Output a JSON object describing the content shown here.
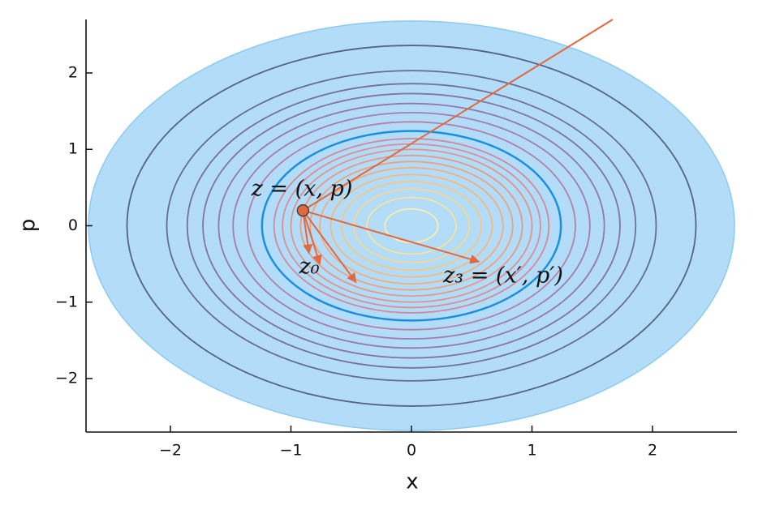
{
  "chart_data": {
    "type": "contour",
    "x_label": "x",
    "y_label": "p",
    "xlim": [
      -2.7,
      2.7
    ],
    "ylim": [
      -2.7,
      2.7
    ],
    "xticks": [
      {
        "value": -2,
        "label": "−2"
      },
      {
        "value": -1,
        "label": "−1"
      },
      0,
      1,
      2
    ],
    "yticks": [
      {
        "value": -2,
        "label": "−2"
      },
      {
        "value": -1,
        "label": "−1"
      },
      0,
      1,
      2
    ],
    "filled_radius": 2.68,
    "fill_color": "#b3dcf8",
    "boundary": {
      "radius": 1.24,
      "color": "#1a8fe0"
    },
    "contours": [
      {
        "radius": 0.22,
        "color": "#f8eeb0"
      },
      {
        "radius": 0.37,
        "color": "#f7e39a"
      },
      {
        "radius": 0.48,
        "color": "#f6d690"
      },
      {
        "radius": 0.58,
        "color": "#f5c886"
      },
      {
        "radius": 0.67,
        "color": "#f3ba80"
      },
      {
        "radius": 0.76,
        "color": "#f0ad7e"
      },
      {
        "radius": 0.84,
        "color": "#eba380"
      },
      {
        "radius": 0.92,
        "color": "#e69a86"
      },
      {
        "radius": 1.0,
        "color": "#e0948e"
      },
      {
        "radius": 1.07,
        "color": "#d98f96"
      },
      {
        "radius": 1.14,
        "color": "#d18a9c"
      },
      {
        "radius": 1.36,
        "color": "#b580a8"
      },
      {
        "radius": 1.48,
        "color": "#a47cae"
      },
      {
        "radius": 1.6,
        "color": "#9378ae"
      },
      {
        "radius": 1.73,
        "color": "#8374a6"
      },
      {
        "radius": 1.86,
        "color": "#74709c"
      },
      {
        "radius": 2.03,
        "color": "#666c90"
      },
      {
        "radius": 2.36,
        "color": "#556482"
      }
    ],
    "point": {
      "x": -0.9,
      "y": 0.2,
      "color": "#e2693f"
    },
    "trajectory": {
      "x": [
        -0.9,
        1.67
      ],
      "y": [
        0.2,
        2.7
      ],
      "color": "#e2693f"
    },
    "arrows": {
      "x": [
        -0.85,
        -0.76,
        -0.46,
        0.56
      ],
      "y": [
        -0.36,
        -0.5,
        -0.74,
        -0.47
      ],
      "color": "#e2693f"
    },
    "annotations": [
      "z = (x, p)",
      "z₀",
      "z₃ = (x′, p′)"
    ]
  }
}
